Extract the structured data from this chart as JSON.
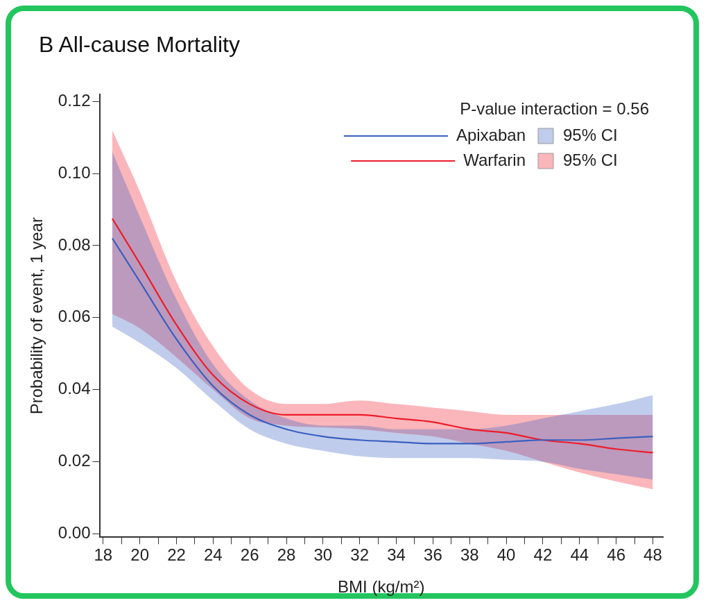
{
  "chart_data": {
    "type": "line",
    "title": "B All-cause Mortality",
    "xlabel": "BMI (kg/m²)",
    "ylabel": "Probability of event, 1 year",
    "annotations": [
      "P-value interaction = 0.56"
    ],
    "x": [
      18.5,
      20,
      22,
      24,
      26,
      28,
      30,
      32,
      34,
      36,
      38,
      40,
      42,
      44,
      46,
      48
    ],
    "series": [
      {
        "name": "Apixaban",
        "color": "#3a5fc0",
        "values": [
          0.082,
          0.07,
          0.054,
          0.041,
          0.033,
          0.029,
          0.027,
          0.026,
          0.0255,
          0.025,
          0.025,
          0.0255,
          0.026,
          0.026,
          0.0265,
          0.027
        ],
        "lower": [
          0.0575,
          0.053,
          0.046,
          0.037,
          0.029,
          0.025,
          0.023,
          0.0215,
          0.021,
          0.021,
          0.021,
          0.0205,
          0.02,
          0.018,
          0.0165,
          0.015
        ],
        "upper": [
          0.106,
          0.088,
          0.065,
          0.047,
          0.037,
          0.032,
          0.03,
          0.03,
          0.029,
          0.029,
          0.029,
          0.03,
          0.032,
          0.034,
          0.036,
          0.0385
        ]
      },
      {
        "name": "Warfarin",
        "color": "#ee1c2a",
        "values": [
          0.0875,
          0.075,
          0.058,
          0.044,
          0.036,
          0.033,
          0.033,
          0.033,
          0.032,
          0.031,
          0.029,
          0.028,
          0.026,
          0.025,
          0.0235,
          0.0225
        ],
        "lower": [
          0.061,
          0.057,
          0.049,
          0.04,
          0.032,
          0.03,
          0.0295,
          0.029,
          0.028,
          0.027,
          0.025,
          0.023,
          0.02,
          0.017,
          0.0145,
          0.0123
        ],
        "upper": [
          0.112,
          0.095,
          0.07,
          0.052,
          0.04,
          0.036,
          0.036,
          0.037,
          0.036,
          0.035,
          0.034,
          0.033,
          0.033,
          0.033,
          0.033,
          0.033
        ]
      }
    ],
    "legend_title": "95% CI",
    "xlim": [
      17.8,
      48.55
    ],
    "xticks": [
      18,
      {
        "value": 19,
        "label": null
      },
      20,
      {
        "value": 21,
        "label": null
      },
      22,
      {
        "value": 23,
        "label": null
      },
      24,
      {
        "value": 25,
        "label": null
      },
      26,
      {
        "value": 27,
        "label": null
      },
      28,
      {
        "value": 29,
        "label": null
      },
      30,
      {
        "value": 31,
        "label": null
      },
      32,
      {
        "value": 33,
        "label": null
      },
      34,
      {
        "value": 35,
        "label": null
      },
      36,
      {
        "value": 37,
        "label": null
      },
      38,
      {
        "value": 39,
        "label": null
      },
      40,
      {
        "value": 41,
        "label": null
      },
      42,
      {
        "value": 43,
        "label": null
      },
      44,
      {
        "value": 45,
        "label": null
      },
      46,
      {
        "value": 47,
        "label": null
      },
      48
    ],
    "ylim": [
      -0.001,
      0.122
    ],
    "yticks": [
      {
        "value": 0,
        "label": "0.00"
      },
      {
        "value": 0.02,
        "label": "0.02"
      },
      {
        "value": 0.04,
        "label": "0.04"
      },
      {
        "value": 0.06,
        "label": "0.06"
      },
      {
        "value": 0.08,
        "label": "0.08"
      },
      {
        "value": 0.1,
        "label": "0.10"
      },
      {
        "value": 0.12,
        "label": "0.12"
      }
    ],
    "grid": false,
    "legend": "top right",
    "marker": "none",
    "line_style": "solid"
  }
}
